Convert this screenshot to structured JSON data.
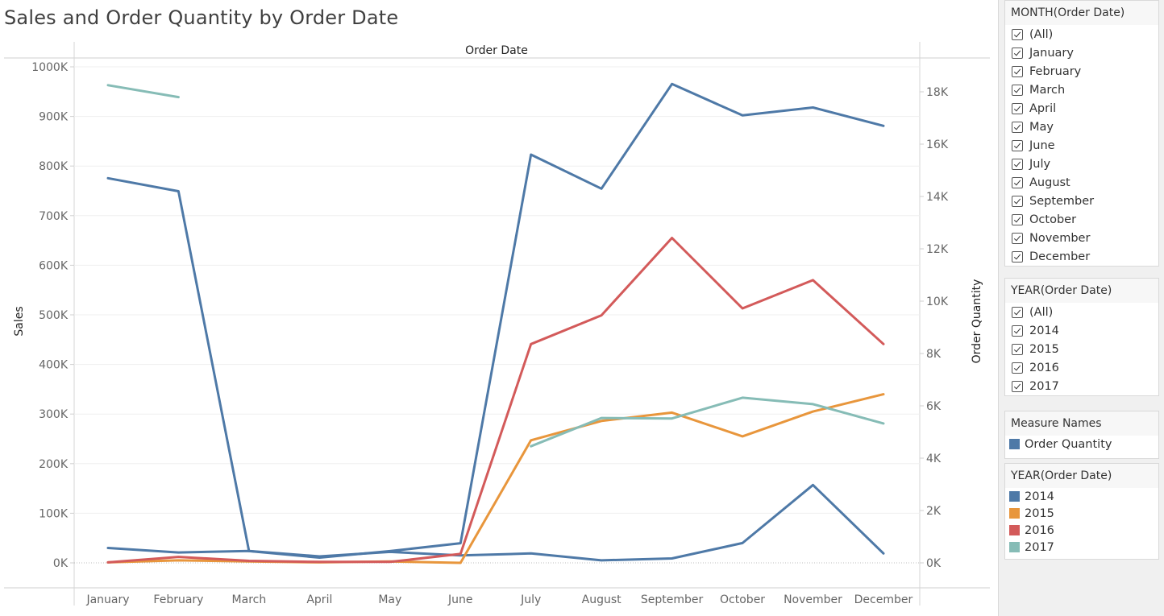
{
  "title": "Sales and Order Quantity by Order Date",
  "colors": {
    "2014": "#4e79a7",
    "2015": "#e8963c",
    "2016": "#d35a5a",
    "2017": "#86bcb6",
    "order_quantity": "#4e79a7"
  },
  "filters": {
    "month": {
      "title": "MONTH(Order Date)",
      "items": [
        "(All)",
        "January",
        "February",
        "March",
        "April",
        "May",
        "June",
        "July",
        "August",
        "September",
        "October",
        "November",
        "December"
      ]
    },
    "year": {
      "title": "YEAR(Order Date)",
      "items": [
        "(All)",
        "2014",
        "2015",
        "2016",
        "2017"
      ]
    }
  },
  "legends": {
    "measure": {
      "title": "Measure Names",
      "items": [
        {
          "label": "Order Quantity",
          "color": "#4e79a7"
        }
      ]
    },
    "year": {
      "title": "YEAR(Order Date)",
      "items": [
        {
          "label": "2014",
          "color": "#4e79a7"
        },
        {
          "label": "2015",
          "color": "#e8963c"
        },
        {
          "label": "2016",
          "color": "#d35a5a"
        },
        {
          "label": "2017",
          "color": "#86bcb6"
        }
      ]
    }
  },
  "chart_data": {
    "type": "line",
    "title": "Sales and Order Quantity by Order Date",
    "header": "Order Date",
    "categories": [
      "January",
      "February",
      "March",
      "April",
      "May",
      "June",
      "July",
      "August",
      "September",
      "October",
      "November",
      "December"
    ],
    "ylabel": "Sales",
    "y2label": "Order Quantity",
    "ylim": [
      0,
      1000000
    ],
    "y2lim": [
      0,
      19000
    ],
    "yticks": [
      0,
      100000,
      200000,
      300000,
      400000,
      500000,
      600000,
      700000,
      800000,
      900000,
      1000000
    ],
    "yticklabels": [
      "0K",
      "100K",
      "200K",
      "300K",
      "400K",
      "500K",
      "600K",
      "700K",
      "800K",
      "900K",
      "1000K"
    ],
    "y2ticks": [
      0,
      2000,
      4000,
      6000,
      8000,
      10000,
      12000,
      14000,
      16000,
      18000
    ],
    "y2ticklabels": [
      "0K",
      "2K",
      "4K",
      "6K",
      "8K",
      "10K",
      "12K",
      "14K",
      "16K",
      "18K"
    ],
    "grid": true,
    "series": [
      {
        "name": "2014",
        "axis": "sales",
        "color": "#4e79a7",
        "values": [
          30000,
          21000,
          24000,
          13000,
          22000,
          15000,
          19000,
          5000,
          9000,
          40000,
          157000,
          19000
        ]
      },
      {
        "name": "2015",
        "axis": "sales",
        "color": "#e8963c",
        "values": [
          1000,
          5000,
          3000,
          1000,
          3000,
          0,
          247000,
          286000,
          303000,
          255000,
          305000,
          340000
        ]
      },
      {
        "name": "2016",
        "axis": "sales",
        "color": "#d35a5a",
        "values": [
          1000,
          12000,
          4000,
          2000,
          2000,
          18000,
          441000,
          499000,
          655000,
          513000,
          570000,
          441000
        ]
      },
      {
        "name": "2017",
        "axis": "sales",
        "color": "#86bcb6",
        "values": [
          963000,
          939000,
          null,
          null,
          null,
          null,
          235000,
          292000,
          291000,
          333000,
          320000,
          281000
        ]
      },
      {
        "name": "Order Quantity",
        "axis": "quantity",
        "color": "#4e79a7",
        "values": [
          14700,
          14200,
          450,
          200,
          450,
          750,
          15600,
          14300,
          18300,
          17100,
          17400,
          16700
        ]
      }
    ]
  }
}
